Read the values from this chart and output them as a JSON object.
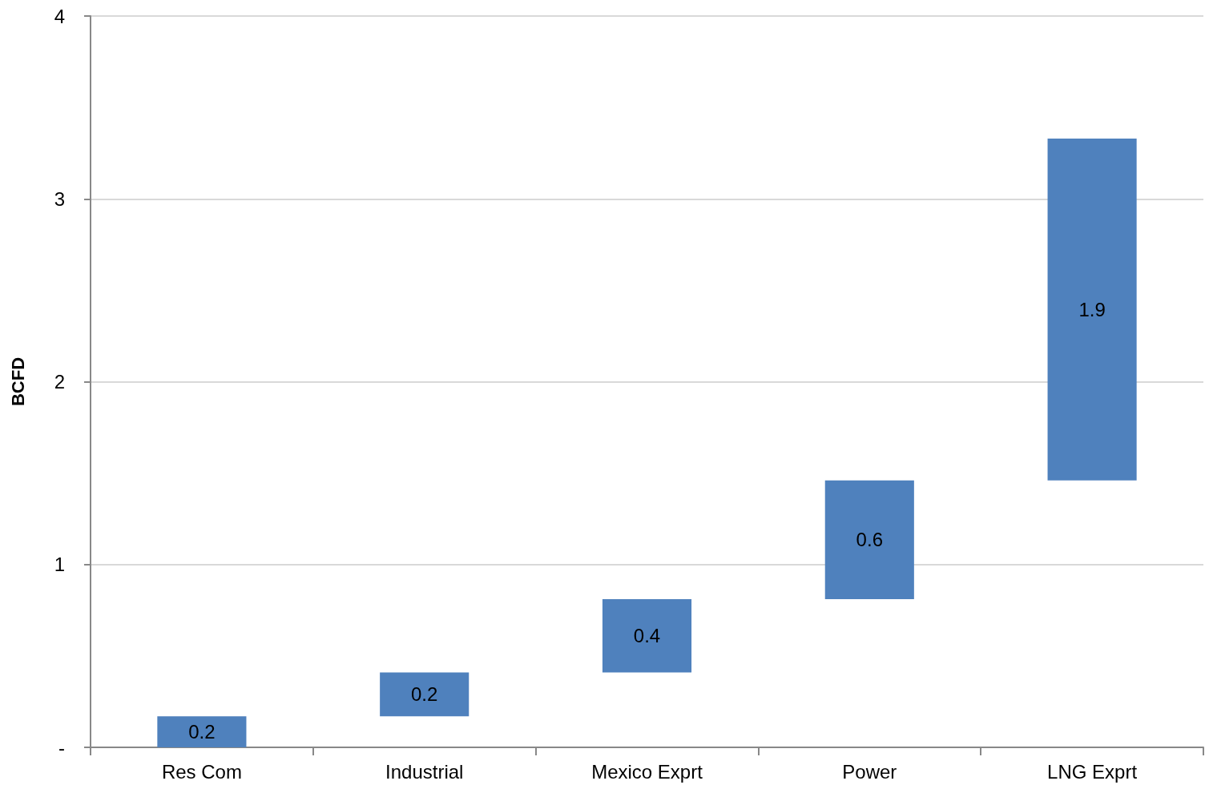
{
  "chart_data": {
    "type": "bar",
    "ylabel": "BCFD",
    "categories": [
      "Res Com",
      "Industrial",
      "Mexico Exprt",
      "Power",
      "LNG Exprt"
    ],
    "base": [
      0,
      0.17,
      0.41,
      0.81,
      1.46
    ],
    "values": [
      0.17,
      0.24,
      0.4,
      0.65,
      1.87
    ],
    "value_labels": [
      "0.2",
      "0.2",
      "0.4",
      "0.6",
      "1.9"
    ],
    "color": "#4f81bd",
    "ylim": [
      0,
      4
    ],
    "yticks": [
      {
        "value": 0,
        "label": "-"
      },
      1,
      2,
      3,
      4
    ],
    "grid": "y"
  }
}
